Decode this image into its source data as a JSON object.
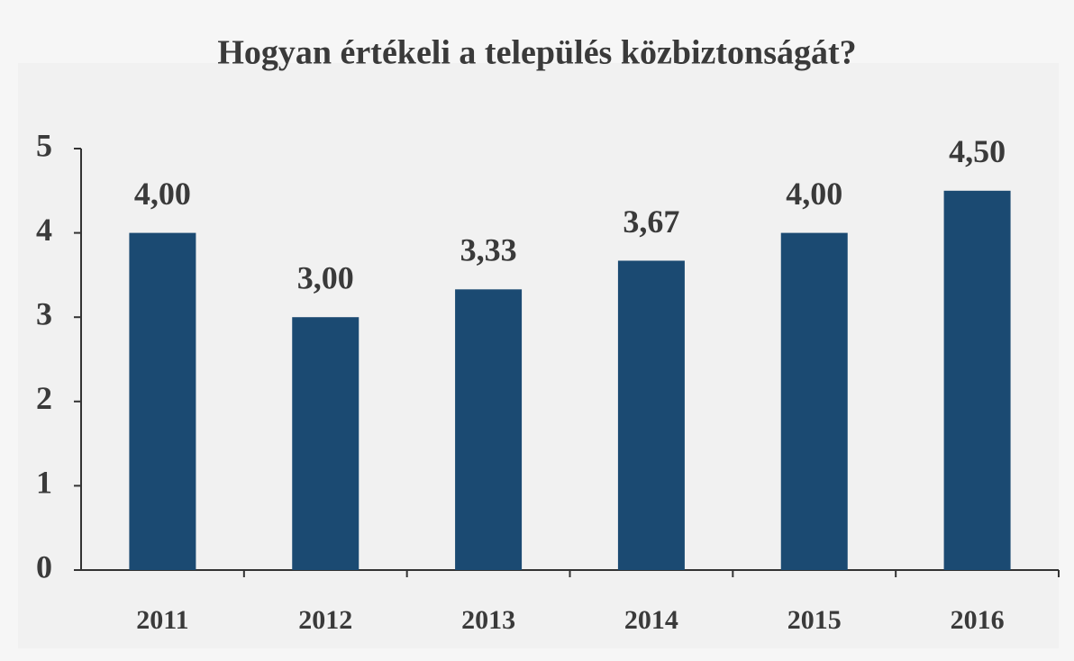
{
  "chart_data": {
    "type": "bar",
    "title": "Hogyan értékeli a település közbiztonságát?",
    "categories": [
      "2011",
      "2012",
      "2013",
      "2014",
      "2015",
      "2016"
    ],
    "values": [
      4.0,
      3.0,
      3.33,
      3.67,
      4.0,
      4.5
    ],
    "value_labels": [
      "4,00",
      "3,00",
      "3,33",
      "3,67",
      "4,00",
      "4,50"
    ],
    "color": "#1b4a72",
    "ylim": [
      0,
      5
    ],
    "yticks": [
      0,
      1,
      2,
      3,
      4,
      5
    ],
    "grid": false
  }
}
